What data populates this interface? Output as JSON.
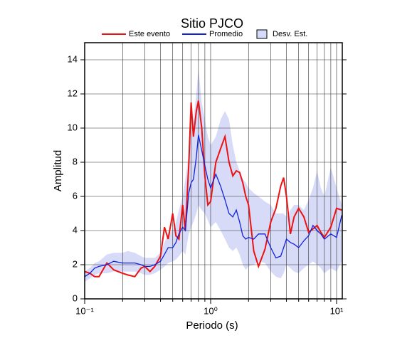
{
  "chart_data": {
    "type": "line",
    "title": "Sitio PJCO",
    "xlabel": "Periodo (s)",
    "ylabel": "Amplitud",
    "xscale": "log",
    "grid": true,
    "xlim": [
      0.1,
      11.1
    ],
    "ylim": [
      0,
      15
    ],
    "xticks": [
      {
        "value": 0.1,
        "label": "10⁻¹"
      },
      {
        "value": 1,
        "label": "10⁰"
      },
      {
        "value": 10,
        "label": "10¹"
      }
    ],
    "x_minor_ticks": [
      0.2,
      0.3,
      0.4,
      0.5,
      0.6,
      0.7,
      0.8,
      0.9,
      2,
      3,
      4,
      5,
      6,
      7,
      8,
      9
    ],
    "yticks": [
      0,
      2,
      4,
      6,
      8,
      10,
      12,
      14
    ],
    "x": [
      0.1,
      0.11,
      0.12,
      0.13,
      0.15,
      0.17,
      0.2,
      0.22,
      0.25,
      0.28,
      0.3,
      0.33,
      0.36,
      0.4,
      0.43,
      0.46,
      0.5,
      0.53,
      0.56,
      0.6,
      0.63,
      0.67,
      0.7,
      0.73,
      0.77,
      0.8,
      0.85,
      0.9,
      0.95,
      1.0,
      1.1,
      1.2,
      1.3,
      1.4,
      1.5,
      1.6,
      1.7,
      1.8,
      1.9,
      2.0,
      2.2,
      2.4,
      2.7,
      3.0,
      3.3,
      3.6,
      3.8,
      4.0,
      4.3,
      4.6,
      5.0,
      5.5,
      6,
      6.5,
      7,
      7.5,
      8,
      9,
      10,
      11
    ],
    "series": [
      {
        "name": "Este evento",
        "color": "#ee1111",
        "values": [
          1.6,
          1.5,
          1.3,
          1.3,
          2.1,
          1.7,
          1.5,
          1.4,
          1.3,
          1.8,
          1.9,
          1.6,
          1.9,
          2.5,
          4.2,
          3.5,
          5.0,
          3.7,
          3.5,
          5.5,
          4.0,
          7.8,
          11.5,
          9.5,
          11.0,
          11.6,
          10.0,
          7.2,
          5.5,
          5.7,
          8.0,
          8.8,
          9.5,
          8.0,
          7.2,
          7.5,
          7.4,
          6.8,
          6.0,
          5.5,
          2.8,
          1.9,
          2.9,
          4.5,
          5.3,
          6.6,
          7.1,
          6.0,
          3.8,
          4.8,
          5.3,
          4.8,
          3.9,
          4.1,
          4.3,
          3.9,
          3.6,
          4.2,
          5.3,
          5.2
        ]
      },
      {
        "name": "Promedio",
        "color": "#1122dd",
        "values": [
          1.3,
          1.5,
          1.8,
          1.9,
          2.0,
          2.2,
          2.1,
          2.1,
          2.1,
          2.0,
          1.9,
          1.9,
          2.0,
          2.2,
          2.6,
          3.0,
          3.0,
          3.3,
          3.8,
          4.2,
          4.0,
          6.2,
          6.8,
          7.0,
          8.3,
          9.6,
          8.7,
          7.8,
          7.0,
          6.5,
          7.3,
          6.6,
          5.8,
          5.0,
          4.8,
          5.2,
          4.5,
          3.7,
          3.5,
          3.6,
          3.5,
          3.8,
          3.8,
          3.0,
          2.4,
          2.5,
          3.0,
          3.5,
          3.3,
          3.2,
          3.0,
          3.4,
          3.7,
          4.3,
          4.0,
          3.8,
          3.5,
          3.8,
          3.6,
          4.9
        ]
      },
      {
        "name": "Desv. Est.",
        "color": "#d8dbf8",
        "upper": [
          1.6,
          1.8,
          2.1,
          2.2,
          2.6,
          2.7,
          2.7,
          2.8,
          2.7,
          2.5,
          2.4,
          2.4,
          2.4,
          2.7,
          3.3,
          3.8,
          4.0,
          4.5,
          5.2,
          6.0,
          7.0,
          8.5,
          9.5,
          10.5,
          12.0,
          13.5,
          11.5,
          10.5,
          9.5,
          9.0,
          9.5,
          10.5,
          11.0,
          10.5,
          9.0,
          8.0,
          7.5,
          7.0,
          6.8,
          6.5,
          6.2,
          6.0,
          5.7,
          5.5,
          5.0,
          5.0,
          5.0,
          4.8,
          5.2,
          5.5,
          5.5,
          5.2,
          5.8,
          6.5,
          7.5,
          6.5,
          6.0,
          7.7,
          6.5,
          5.5
        ],
        "lower": [
          1.0,
          1.2,
          1.4,
          1.5,
          1.5,
          1.6,
          1.6,
          1.6,
          1.6,
          1.5,
          1.4,
          1.4,
          1.5,
          1.7,
          1.9,
          2.1,
          2.2,
          2.3,
          2.5,
          2.8,
          2.6,
          3.8,
          4.2,
          4.5,
          5.0,
          5.5,
          5.2,
          5.0,
          4.6,
          4.2,
          4.5,
          4.0,
          3.5,
          3.0,
          2.8,
          3.0,
          2.6,
          2.0,
          1.7,
          1.9,
          2.0,
          2.2,
          2.1,
          1.6,
          1.3,
          1.2,
          1.5,
          2.0,
          1.8,
          1.6,
          1.5,
          1.8,
          2.0,
          2.2,
          2.0,
          1.8,
          1.5,
          1.8,
          1.6,
          2.2
        ]
      }
    ]
  }
}
